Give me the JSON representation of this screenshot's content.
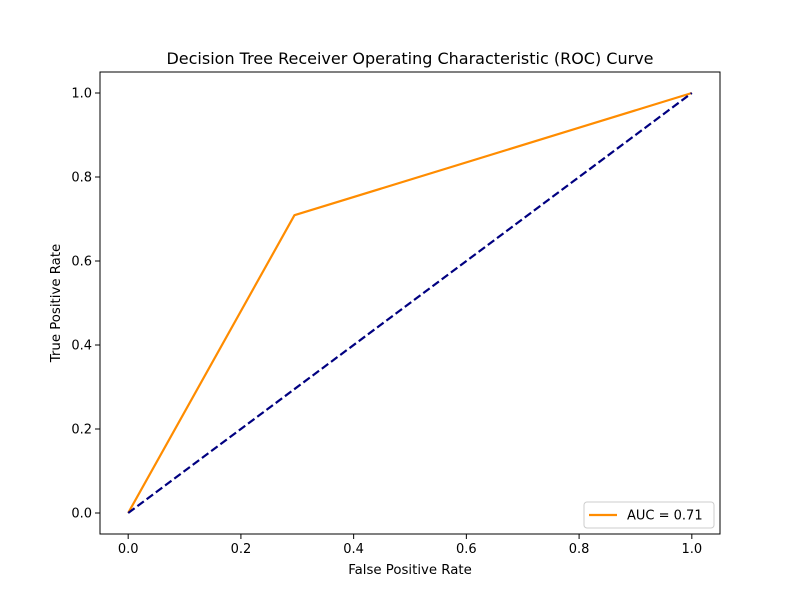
{
  "chart_data": {
    "type": "line",
    "title": "Decision Tree Receiver Operating Characteristic (ROC) Curve",
    "xlabel": "False Positive Rate",
    "ylabel": "True Positive Rate",
    "xlim": [
      -0.05,
      1.05
    ],
    "ylim": [
      -0.05,
      1.05
    ],
    "xticks": [
      "0.0",
      "0.2",
      "0.4",
      "0.6",
      "0.8",
      "1.0"
    ],
    "yticks": [
      "0.0",
      "0.2",
      "0.4",
      "0.6",
      "0.8",
      "1.0"
    ],
    "grid": false,
    "legend_position": "lower right",
    "series": [
      {
        "name": "AUC = 0.71",
        "color": "#ff8c00",
        "style": "solid",
        "x": [
          0.0,
          0.295,
          1.0
        ],
        "y": [
          0.0,
          0.709,
          1.0
        ]
      },
      {
        "color": "#000080",
        "style": "dashed",
        "x": [
          0.0,
          1.0
        ],
        "y": [
          0.0,
          1.0
        ]
      }
    ]
  }
}
